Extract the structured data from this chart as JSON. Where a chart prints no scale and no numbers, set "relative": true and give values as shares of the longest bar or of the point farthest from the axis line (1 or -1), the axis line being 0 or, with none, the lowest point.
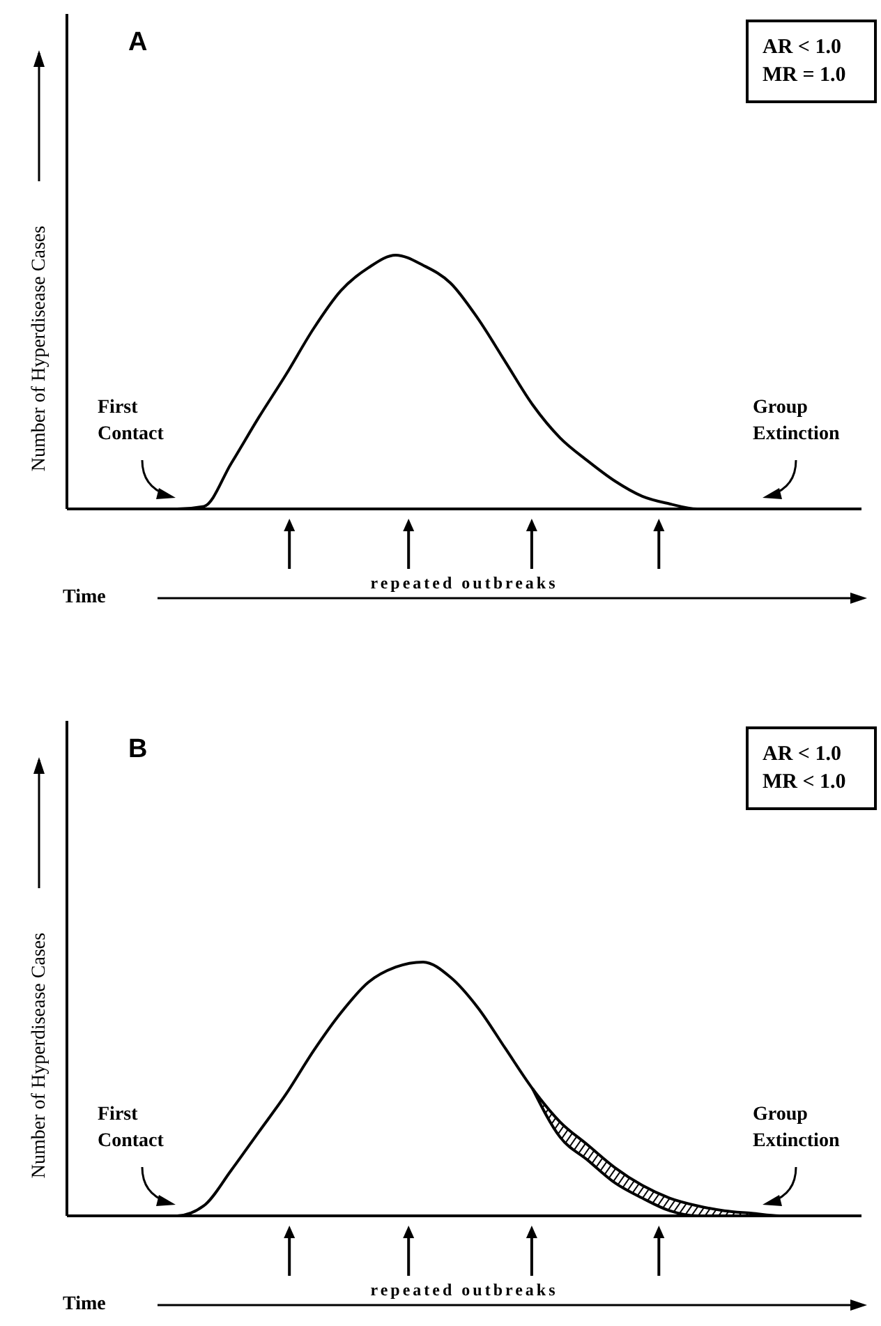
{
  "chart_data": [
    {
      "type": "line",
      "title": "A",
      "ylabel": "Number of Hyperdisease Cases",
      "xlabel": "Time",
      "relative": true,
      "categories": [
        null,
        null,
        null,
        null,
        null,
        null,
        null,
        null,
        null,
        null,
        null,
        null,
        null,
        null,
        null,
        null,
        null,
        null,
        null,
        null,
        null,
        null,
        null,
        null,
        null,
        null,
        null,
        null,
        null,
        null
      ],
      "series": [
        {
          "color": "#000000",
          "values": [
            0,
            0,
            0,
            0,
            0,
            0.01,
            0.18,
            0.36,
            0.53,
            0.71,
            0.86,
            0.95,
            1.0,
            0.96,
            0.89,
            0.75,
            0.58,
            0.41,
            0.28,
            0.19,
            0.11,
            0.05,
            0.02,
            0,
            0,
            0,
            0,
            0,
            0,
            0
          ]
        }
      ],
      "annotations": [
        "AR < 1.0",
        "MR = 1.0",
        "First Contact",
        "Group Extinction",
        "repeated outbreaks"
      ]
    },
    {
      "type": "line",
      "title": "B",
      "ylabel": "Number of Hyperdisease Cases",
      "xlabel": "Time",
      "relative": true,
      "categories": [
        null,
        null,
        null,
        null,
        null,
        null,
        null,
        null,
        null,
        null,
        null,
        null,
        null,
        null,
        null,
        null,
        null,
        null,
        null,
        null,
        null,
        null,
        null,
        null,
        null,
        null,
        null,
        null,
        null,
        null
      ],
      "series": [
        {
          "color": "#000000",
          "values": [
            0,
            0,
            0,
            0,
            0,
            0.04,
            0.18,
            0.33,
            0.48,
            0.65,
            0.8,
            0.92,
            0.98,
            1.0,
            0.94,
            0.82,
            0.66,
            0.5,
            0.37,
            0.28,
            0.19,
            0.12,
            0.07,
            0.04,
            0.02,
            0.01,
            0,
            0,
            0,
            0
          ],
          "lower": [
            null,
            null,
            null,
            null,
            null,
            null,
            null,
            null,
            null,
            null,
            null,
            null,
            null,
            null,
            null,
            null,
            null,
            0.5,
            0.31,
            0.22,
            0.13,
            0.07,
            0.02,
            0,
            0,
            0,
            0,
            0,
            0,
            0
          ],
          "upper": [
            null,
            null,
            null,
            null,
            null,
            null,
            null,
            null,
            null,
            null,
            null,
            null,
            null,
            null,
            null,
            null,
            null,
            0.5,
            0.37,
            0.28,
            0.19,
            0.12,
            0.07,
            0.04,
            0.02,
            0.01,
            0,
            0,
            0,
            0
          ]
        },
        {
          "color": "#000000",
          "values": [
            null,
            null,
            null,
            null,
            null,
            null,
            null,
            null,
            null,
            null,
            null,
            null,
            null,
            null,
            null,
            null,
            null,
            0.5,
            0.31,
            0.22,
            0.13,
            0.07,
            0.02,
            0,
            0,
            0,
            0,
            0,
            0,
            0
          ]
        }
      ],
      "annotations": [
        "AR < 1.0",
        "MR < 1.0",
        "First Contact",
        "Group Extinction",
        "repeated outbreaks"
      ]
    }
  ]
}
